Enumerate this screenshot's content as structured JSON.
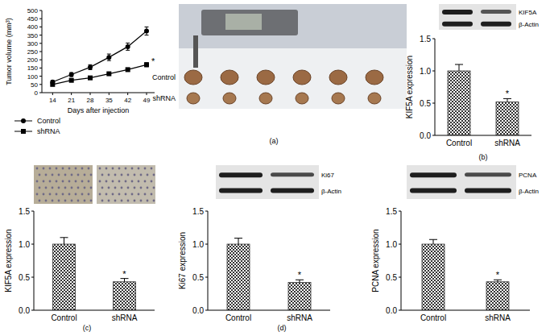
{
  "chart_data": [
    {
      "type": "line",
      "x_label": "Days after injection",
      "y_label": "Tumor volume (mm³)",
      "x": [
        14,
        21,
        28,
        35,
        42,
        49
      ],
      "xlim": [
        10,
        52
      ],
      "xticks": [
        14,
        21,
        28,
        35,
        42,
        49
      ],
      "ylim": [
        0,
        500
      ],
      "yticks": [
        0,
        50,
        100,
        150,
        200,
        250,
        300,
        350,
        400,
        450,
        500
      ],
      "series": [
        {
          "name": "Control",
          "color": "#000000",
          "marker": "circle",
          "values": [
            65,
            110,
            155,
            215,
            280,
            375
          ],
          "errors": [
            8,
            12,
            15,
            20,
            22,
            25
          ]
        },
        {
          "name": "shRNA",
          "color": "#000000",
          "marker": "square",
          "values": [
            50,
            75,
            90,
            115,
            140,
            170
          ],
          "errors": [
            5,
            6,
            7,
            8,
            10,
            12
          ]
        }
      ],
      "legend": "bottom-left",
      "annotations": [
        "*"
      ]
    },
    {
      "type": "bar",
      "y_label": "KIF5A expression",
      "categories": [
        "Control",
        "shRNA"
      ],
      "values": [
        1.0,
        0.52
      ],
      "errors": [
        0.1,
        0.05
      ],
      "color": "#333333",
      "ylim": [
        0,
        1.5
      ],
      "yticks": [
        {
          "value": 0,
          "label": "0.0"
        },
        0.5,
        {
          "value": 1,
          "label": "1.0"
        },
        1.5
      ],
      "annotations": [
        "*"
      ]
    },
    {
      "type": "bar",
      "y_label": "KIF5A expression",
      "categories": [
        "Control",
        "shRNA"
      ],
      "values": [
        1.0,
        0.43
      ],
      "errors": [
        0.1,
        0.05
      ],
      "color": "#333333",
      "ylim": [
        0,
        1.5
      ],
      "yticks": [
        {
          "value": 0,
          "label": "0.0"
        },
        0.5,
        {
          "value": 1,
          "label": "1.0"
        },
        1.5
      ],
      "annotations": [
        "*"
      ]
    },
    {
      "type": "bar",
      "y_label": "Ki67 expression",
      "categories": [
        "Control",
        "shRNA"
      ],
      "values": [
        1.0,
        0.42
      ],
      "errors": [
        0.09,
        0.04
      ],
      "color": "#333333",
      "ylim": [
        0,
        1.5
      ],
      "yticks": [
        {
          "value": 0,
          "label": "0.0"
        },
        0.5,
        {
          "value": 1,
          "label": "1.0"
        },
        1.5
      ],
      "annotations": [
        "*"
      ]
    },
    {
      "type": "bar",
      "y_label": "PCNA expression",
      "categories": [
        "Control",
        "shRNA"
      ],
      "values": [
        1.0,
        0.43
      ],
      "errors": [
        0.07,
        0.03
      ],
      "color": "#333333",
      "ylim": [
        0,
        1.5
      ],
      "yticks": [
        {
          "value": 0,
          "label": "0.0"
        },
        0.5,
        {
          "value": 1,
          "label": "1.0"
        },
        1.5
      ],
      "annotations": [
        "*"
      ]
    }
  ],
  "figure": {
    "panel_labels": [
      "(a)",
      "(b)",
      "(c)",
      "(d)"
    ],
    "photo_labels": [
      "Control",
      "shRNA"
    ],
    "blot_labels": [
      [
        "KIF5A",
        "β-Actin"
      ],
      [
        "Ki67",
        "β-Actin"
      ],
      [
        "PCNA",
        "β-Actin"
      ]
    ]
  }
}
